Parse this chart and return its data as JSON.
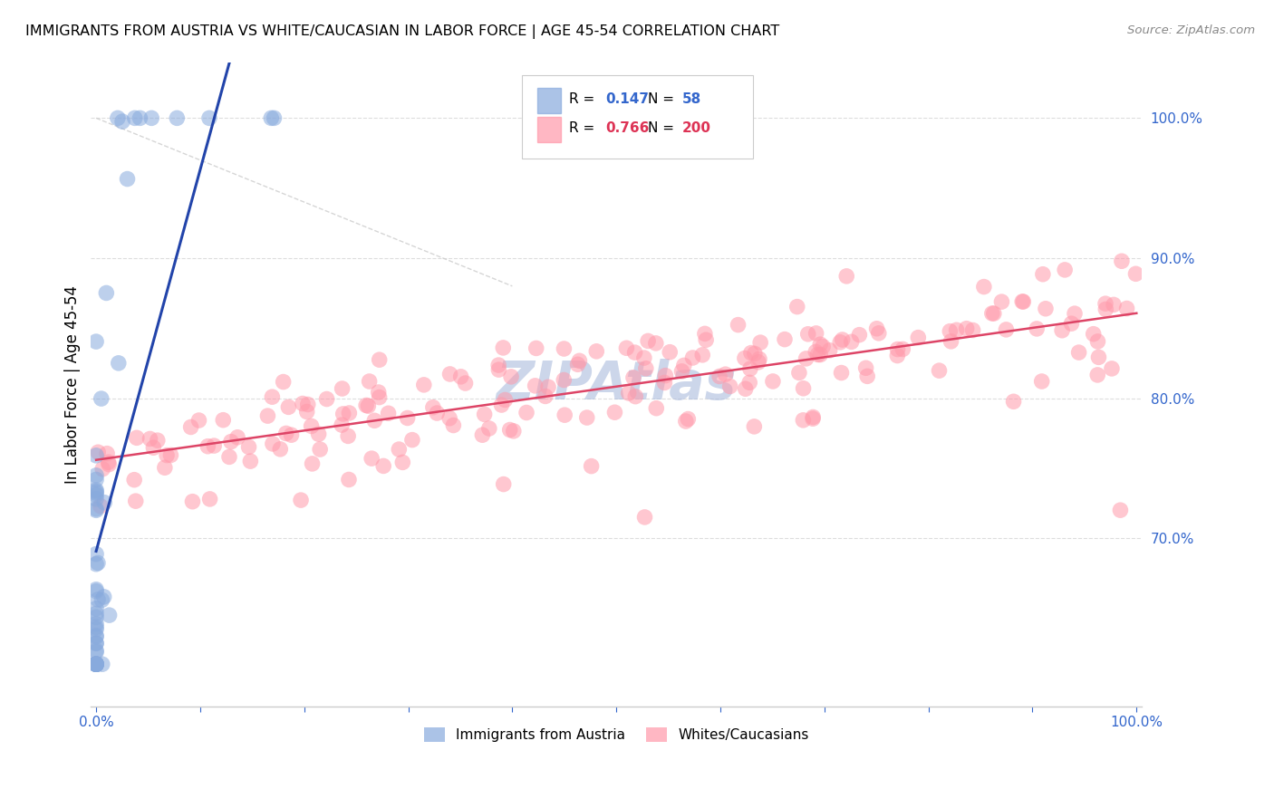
{
  "title": "IMMIGRANTS FROM AUSTRIA VS WHITE/CAUCASIAN IN LABOR FORCE | AGE 45-54 CORRELATION CHART",
  "source": "Source: ZipAtlas.com",
  "ylabel": "In Labor Force | Age 45-54",
  "blue_color": "#88AADD",
  "pink_color": "#FF99AA",
  "blue_line_color": "#2244AA",
  "pink_line_color": "#DD4466",
  "watermark_text": "ZIPAtlas",
  "watermark_color": "#AABBDD",
  "legend_r_blue": "0.147",
  "legend_n_blue": "58",
  "legend_r_pink": "0.766",
  "legend_n_pink": "200",
  "tick_color": "#3366CC",
  "grid_color": "#DDDDDD",
  "ylim_lo": 0.58,
  "ylim_hi": 1.04,
  "xlim_lo": -0.005,
  "xlim_hi": 1.005
}
